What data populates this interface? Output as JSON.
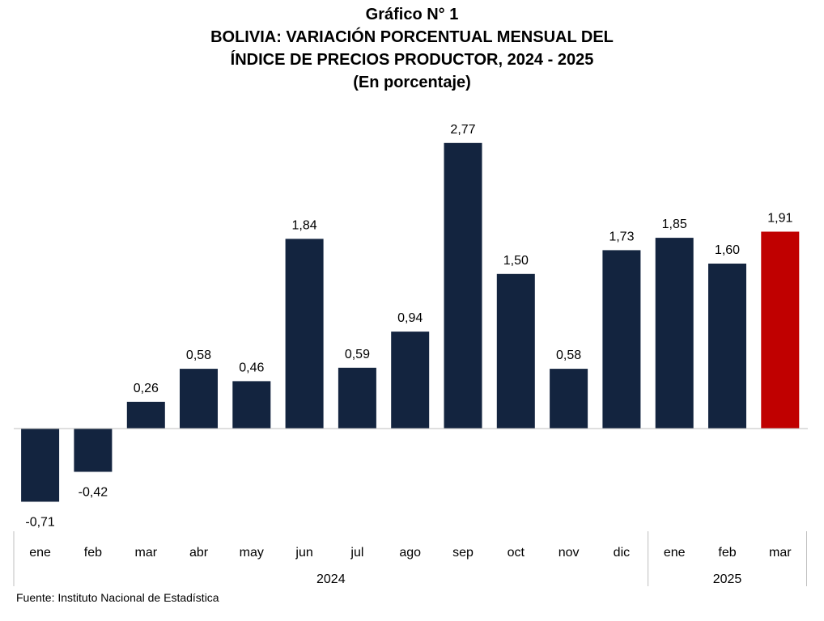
{
  "header": {
    "label": "Gráfico N° 1",
    "line1": "BOLIVIA: VARIACIÓN PORCENTUAL MENSUAL DEL",
    "line2": "ÍNDICE DE PRECIOS PRODUCTOR, 2024 - 2025",
    "unit": "(En porcentaje)"
  },
  "footer": {
    "source": "Fuente: Instituto Nacional de Estadística"
  },
  "chart_data": {
    "type": "bar",
    "categories": [
      "ene",
      "feb",
      "mar",
      "abr",
      "may",
      "jun",
      "jul",
      "ago",
      "sep",
      "oct",
      "nov",
      "dic",
      "ene",
      "feb",
      "mar"
    ],
    "groups": [
      {
        "label": "2024",
        "start": 0,
        "end": 11
      },
      {
        "label": "2025",
        "start": 12,
        "end": 14
      }
    ],
    "values": [
      -0.71,
      -0.42,
      0.26,
      0.58,
      0.46,
      1.84,
      0.59,
      0.94,
      2.77,
      1.5,
      0.58,
      1.73,
      1.85,
      1.6,
      1.91
    ],
    "value_labels": [
      "-0,71",
      "-0,42",
      "0,26",
      "0,58",
      "0,46",
      "1,84",
      "0,59",
      "0,94",
      "2,77",
      "1,50",
      "0,58",
      "1,73",
      "1,85",
      "1,60",
      "1,91"
    ],
    "colors": {
      "default": "#13243f",
      "highlight": "#c00000",
      "axis": "#bfbfbf"
    },
    "highlight_index": 14,
    "grid": false,
    "legend": "none"
  }
}
